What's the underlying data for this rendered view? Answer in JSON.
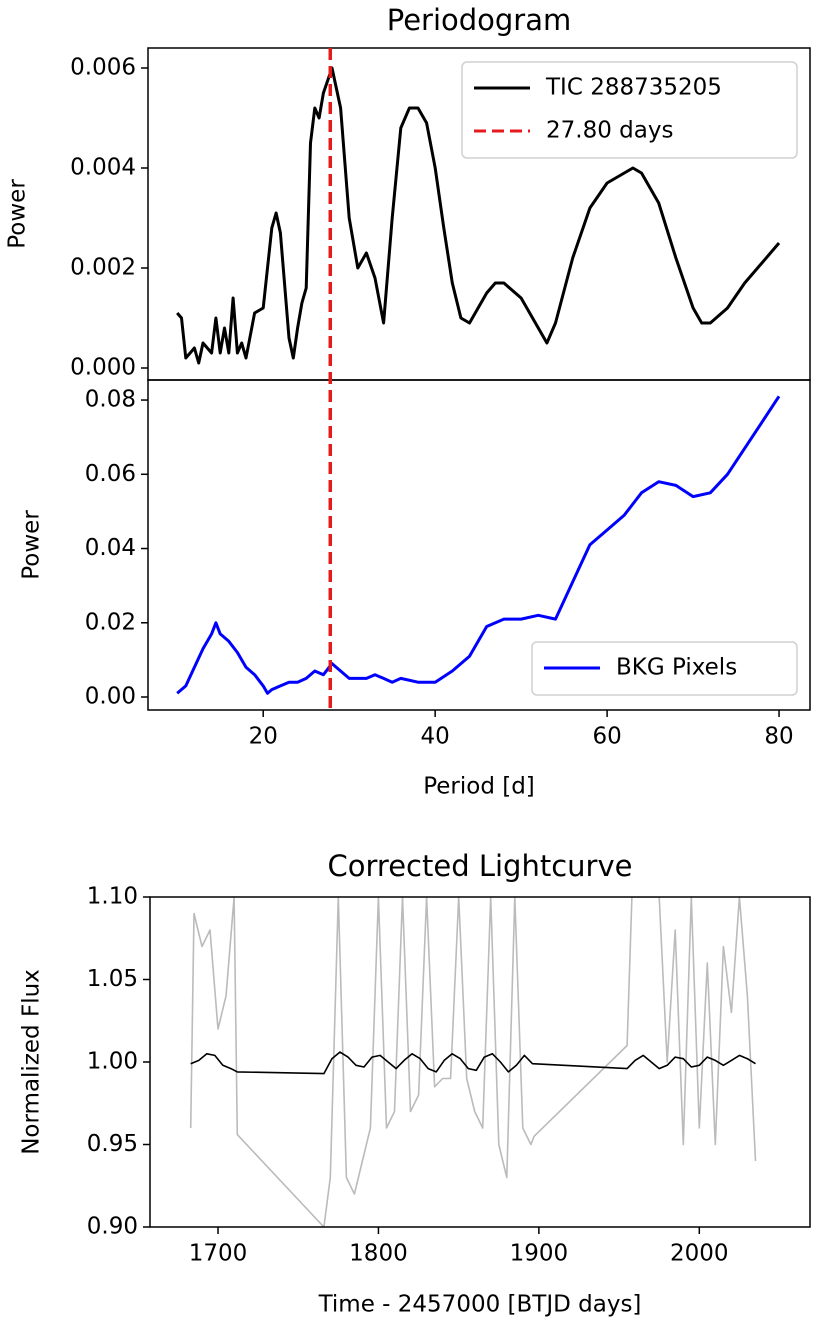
{
  "chart_data": [
    {
      "type": "line",
      "title": "Periodogram",
      "ylabel": "Power",
      "legend": "upper right",
      "xlim": [
        6.6,
        83.6
      ],
      "ylim": [
        -0.00024,
        0.0064
      ],
      "yticks": [
        {
          "value": 0,
          "label": "0.000"
        },
        0.002,
        0.004,
        0.006
      ],
      "vline": {
        "value": 27.8,
        "label": "27.80 days",
        "color": "#e41a1c"
      },
      "series": [
        {
          "name": "TIC 288735205",
          "color": "#000000",
          "x": [
            10,
            10.5,
            11,
            12,
            12.5,
            13,
            14,
            14.5,
            15,
            15.5,
            16,
            16.5,
            17,
            17.5,
            18,
            19,
            20,
            21,
            21.5,
            22,
            23,
            23.5,
            24,
            24.5,
            25,
            25.5,
            26,
            26.5,
            27,
            28,
            29,
            30,
            31,
            32,
            33,
            34,
            35,
            36,
            37,
            38,
            39,
            40,
            41,
            42,
            43,
            44,
            45,
            46,
            47,
            48,
            50,
            52,
            53,
            54,
            56,
            58,
            60,
            62,
            63,
            64,
            66,
            68,
            70,
            71,
            72,
            74,
            76,
            78,
            80
          ],
          "values": [
            0.0011,
            0.001,
            0.0002,
            0.0004,
            0.0001,
            0.0005,
            0.0003,
            0.001,
            0.0003,
            0.0008,
            0.0003,
            0.0014,
            0.0003,
            0.0005,
            0.0002,
            0.0011,
            0.0012,
            0.0028,
            0.0031,
            0.0027,
            0.0006,
            0.0002,
            0.0008,
            0.0013,
            0.0016,
            0.0045,
            0.0052,
            0.005,
            0.0055,
            0.006,
            0.0052,
            0.003,
            0.002,
            0.0023,
            0.0018,
            0.0009,
            0.003,
            0.0048,
            0.0052,
            0.0052,
            0.0049,
            0.004,
            0.0028,
            0.0017,
            0.001,
            0.0009,
            0.0012,
            0.0015,
            0.0017,
            0.0017,
            0.0014,
            0.0008,
            0.0005,
            0.0009,
            0.0022,
            0.0032,
            0.0037,
            0.0039,
            0.004,
            0.0039,
            0.0033,
            0.0022,
            0.0012,
            0.0009,
            0.0009,
            0.0012,
            0.0017,
            0.0021,
            0.0025
          ]
        }
      ]
    },
    {
      "type": "line",
      "xlabel": "Period [d]",
      "ylabel": "Power",
      "legend": "lower right",
      "xlim": [
        6.6,
        83.6
      ],
      "ylim": [
        -0.0035,
        0.0854
      ],
      "xticks": [
        20,
        40,
        60,
        80
      ],
      "yticks": [
        {
          "value": 0,
          "label": "0.00"
        },
        0.02,
        0.04,
        0.06,
        0.08
      ],
      "series": [
        {
          "name": "BKG Pixels",
          "color": "#0000ff",
          "x": [
            10,
            11,
            12,
            13,
            14,
            14.5,
            15,
            16,
            17,
            18,
            19,
            20,
            20.5,
            21,
            22,
            23,
            24,
            25,
            26,
            27,
            28,
            29,
            30,
            32,
            33,
            34,
            35,
            36,
            38,
            40,
            42,
            44,
            46,
            48,
            50,
            52,
            54,
            56,
            58,
            60,
            62,
            64,
            66,
            68,
            70,
            72,
            74,
            76,
            78,
            80
          ],
          "values": [
            0.001,
            0.003,
            0.008,
            0.013,
            0.017,
            0.02,
            0.017,
            0.015,
            0.012,
            0.008,
            0.006,
            0.003,
            0.001,
            0.002,
            0.003,
            0.004,
            0.004,
            0.005,
            0.007,
            0.006,
            0.009,
            0.007,
            0.005,
            0.005,
            0.006,
            0.005,
            0.004,
            0.005,
            0.004,
            0.004,
            0.007,
            0.011,
            0.019,
            0.021,
            0.021,
            0.022,
            0.021,
            0.031,
            0.041,
            0.045,
            0.049,
            0.055,
            0.058,
            0.057,
            0.054,
            0.055,
            0.06,
            0.067,
            0.074,
            0.081
          ]
        }
      ]
    },
    {
      "type": "line",
      "title": "Corrected Lightcurve",
      "xlabel": "Time - 2457000 [BTJD days]",
      "ylabel": "Normalized Flux",
      "xlim": [
        1657.6,
        2069
      ],
      "ylim": [
        0.9,
        1.1
      ],
      "xticks": [
        1700,
        1800,
        1900,
        2000
      ],
      "yticks": [
        {
          "value": 0.9,
          "label": "0.90"
        },
        0.95,
        {
          "value": 1,
          "label": "1.00"
        },
        1.05,
        {
          "value": 1.1,
          "label": "1.10"
        }
      ],
      "series": [
        {
          "color": "#bbbbbb",
          "x": [
            1683,
            1685,
            1690,
            1695,
            1700,
            1705,
            1710,
            1712,
            1766,
            1770,
            1775,
            1780,
            1785,
            1790,
            1795,
            1800,
            1805,
            1810,
            1815,
            1820,
            1825,
            1830,
            1835,
            1840,
            1845,
            1850,
            1855,
            1860,
            1865,
            1870,
            1875,
            1880,
            1885,
            1890,
            1895,
            1897,
            1955,
            1958,
            1965,
            1975,
            1980,
            1985,
            1990,
            1995,
            2000,
            2005,
            2010,
            2015,
            2020,
            2025,
            2030,
            2035
          ],
          "values": [
            0.96,
            1.09,
            1.07,
            1.08,
            1.02,
            1.04,
            1.1,
            0.956,
            0.9,
            0.93,
            1.1,
            0.93,
            0.92,
            0.94,
            0.96,
            1.1,
            0.96,
            0.97,
            1.1,
            0.97,
            0.98,
            1.1,
            0.985,
            0.99,
            0.99,
            1.1,
            0.99,
            0.97,
            0.96,
            1.1,
            0.95,
            0.93,
            1.1,
            0.96,
            0.95,
            0.955,
            1.01,
            1.1,
            1.1,
            1.1,
            1,
            1.08,
            0.95,
            1.1,
            0.96,
            1.06,
            0.95,
            1.07,
            1.03,
            1.1,
            1.04,
            0.94
          ]
        },
        {
          "color": "#000000",
          "x": [
            1683,
            1688,
            1693,
            1698,
            1703,
            1708,
            1712,
            1766,
            1771,
            1776,
            1781,
            1786,
            1791,
            1796,
            1801,
            1806,
            1811,
            1816,
            1821,
            1826,
            1831,
            1836,
            1841,
            1846,
            1851,
            1856,
            1861,
            1866,
            1871,
            1876,
            1881,
            1886,
            1891,
            1896,
            1955,
            1960,
            1965,
            1970,
            1975,
            1980,
            1985,
            1990,
            1995,
            2000,
            2005,
            2010,
            2015,
            2020,
            2025,
            2030,
            2035
          ],
          "values": [
            0.999,
            1.001,
            1.005,
            1.004,
            0.998,
            0.996,
            0.994,
            0.993,
            1.002,
            1.006,
            1.003,
            0.998,
            0.997,
            1.003,
            1.004,
            1,
            0.996,
            1.001,
            1.005,
            1.002,
            0.996,
            0.994,
            1.001,
            1.005,
            1.002,
            0.996,
            0.995,
            1.003,
            1.005,
            1,
            0.994,
            0.998,
            1.004,
            0.999,
            0.996,
            1.001,
            1.004,
            1,
            0.996,
            0.998,
            1.003,
            1.002,
            0.997,
            0.998,
            1.003,
            1.001,
            0.998,
            1.001,
            1.004,
            1.002,
            0.999
          ]
        }
      ]
    }
  ]
}
